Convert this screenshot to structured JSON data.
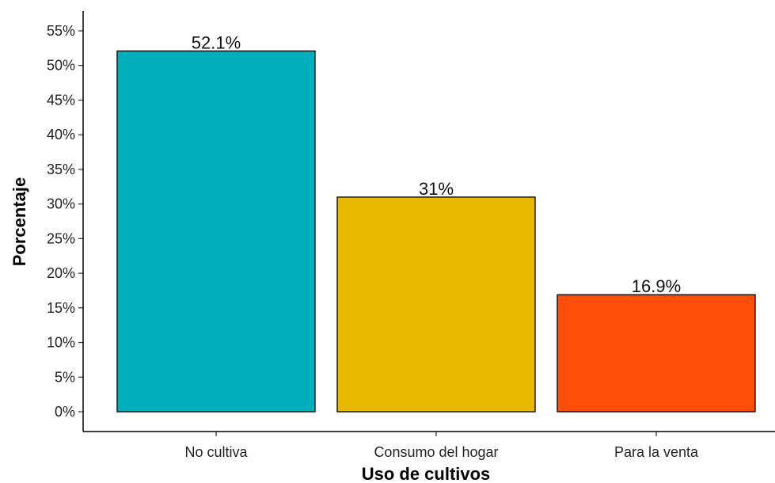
{
  "chart_data": {
    "type": "bar",
    "categories": [
      "No cultiva",
      "Consumo del hogar",
      "Para la venta"
    ],
    "values": [
      52.1,
      31,
      16.9
    ],
    "value_labels": [
      "52.1%",
      "31%",
      "16.9%"
    ],
    "colors": [
      "#00AFBB",
      "#E7B800",
      "#FC4E07"
    ],
    "title": "",
    "xlabel": "Uso de cultivos",
    "ylabel": "Porcentaje",
    "ylim": [
      0,
      55
    ],
    "yticks": [
      0,
      5,
      10,
      15,
      20,
      25,
      30,
      35,
      40,
      45,
      50,
      55
    ],
    "ytick_labels": [
      "0%",
      "5%",
      "10%",
      "15%",
      "20%",
      "25%",
      "30%",
      "35%",
      "40%",
      "45%",
      "50%",
      "55%"
    ],
    "grid": false,
    "legend": "none"
  }
}
